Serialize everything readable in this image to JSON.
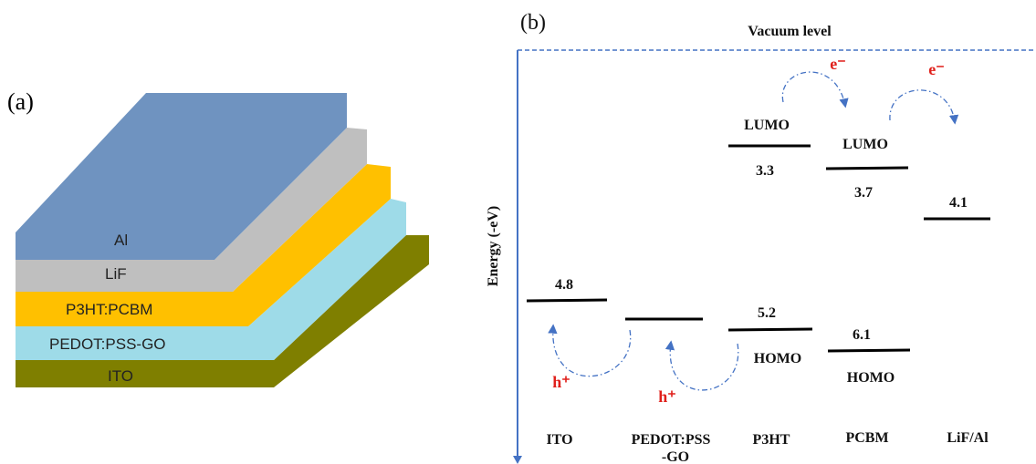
{
  "panel_a": {
    "label": "(a)",
    "layers": [
      "Al",
      "LiF",
      "P3HT:PCBM",
      "PEDOT:PSS-GO",
      "ITO"
    ]
  },
  "panel_b": {
    "label": "(b)",
    "vacuum_level": "Vacuum level",
    "axis_label": "Energy (-eV)",
    "electron": "e⁻",
    "hole": "h⁺",
    "lumo": "LUMO",
    "homo": "HOMO",
    "levels": [
      "3.3",
      "3.7",
      "4.1",
      "4.8",
      "5.2",
      "6.1"
    ],
    "materials": [
      "ITO",
      [
        "PEDOT:PSS",
        "-GO"
      ],
      "P3HT",
      "PCBM",
      "LiF/Al"
    ]
  }
}
